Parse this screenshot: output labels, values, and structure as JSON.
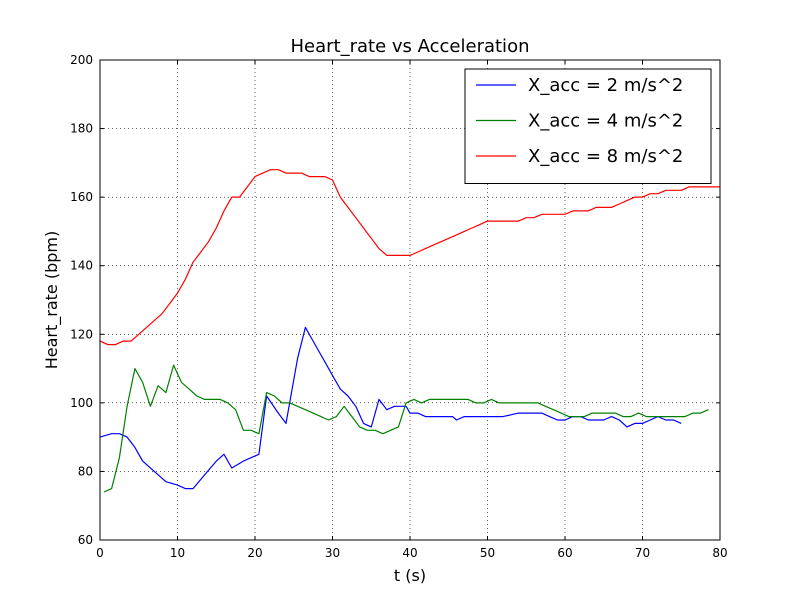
{
  "chart_data": {
    "type": "line",
    "title": "Heart_rate vs Acceleration",
    "xlabel": "t (s)",
    "ylabel": "Heart_rate (bpm)",
    "xlim": [
      0,
      80
    ],
    "ylim": [
      60,
      200
    ],
    "xticks": [
      "0",
      "10",
      "20",
      "30",
      "40",
      "50",
      "60",
      "70",
      "80"
    ],
    "yticks": [
      "60",
      "80",
      "100",
      "120",
      "140",
      "160",
      "180",
      "200"
    ],
    "grid": true,
    "legend_position": "top-right",
    "series": [
      {
        "name": "X_acc = 2 m/s^2",
        "color": "#0000ff",
        "x": [
          0,
          1.5,
          2.5,
          3.5,
          4.5,
          5.5,
          7,
          8.5,
          10,
          11,
          12,
          13.5,
          15,
          16,
          17,
          18.5,
          19.5,
          20.5,
          21.5,
          23,
          24,
          25.5,
          26.5,
          28,
          29,
          30,
          31,
          32,
          33,
          34,
          35,
          36,
          37,
          38,
          39.5,
          40,
          41,
          42,
          44,
          45.5,
          46,
          47,
          48,
          49,
          50,
          51,
          52,
          54,
          55,
          57,
          58,
          59,
          60,
          61,
          62,
          63,
          64,
          65,
          66,
          67,
          68,
          69,
          70,
          71,
          72,
          73,
          74,
          75
        ],
        "y": [
          90,
          91,
          91,
          90,
          87,
          83,
          80,
          77,
          76,
          75,
          75,
          79,
          83,
          85,
          81,
          83,
          84,
          85,
          102,
          97,
          94,
          113,
          122,
          116,
          112,
          108,
          104,
          102,
          99,
          94,
          93,
          101,
          98,
          99,
          99,
          97,
          97,
          96,
          96,
          96,
          95,
          96,
          96,
          96,
          96,
          96,
          96,
          97,
          97,
          97,
          96,
          95,
          95,
          96,
          96,
          95,
          95,
          95,
          96,
          95,
          93,
          94,
          94,
          95,
          96,
          95,
          95,
          94
        ]
      },
      {
        "name": "X_acc = 4 m/s^2",
        "color": "#008000",
        "x": [
          0.5,
          1.5,
          2.5,
          3.5,
          4.5,
          5.5,
          6.5,
          7.5,
          8.5,
          9.5,
          10.5,
          11.5,
          12.5,
          13.5,
          14.5,
          15.5,
          16.5,
          17.5,
          18.5,
          19.5,
          20.5,
          21.5,
          22.5,
          23.5,
          24.5,
          25.5,
          26.5,
          27.5,
          28.5,
          29.5,
          30.5,
          31.5,
          32.5,
          33.5,
          34.5,
          35.5,
          36.5,
          37.5,
          38.5,
          39.5,
          40.5,
          41.5,
          42.5,
          43.5,
          44.5,
          45.5,
          46.5,
          47.5,
          48.5,
          49.5,
          50.5,
          51.5,
          52.5,
          53.5,
          54.5,
          55.5,
          56.5,
          57.5,
          58.5,
          59.5,
          60.5,
          61.5,
          62.5,
          63.5,
          64.5,
          65.5,
          66.5,
          67.5,
          68.5,
          69.5,
          70.5,
          71.5,
          72.5,
          73.5,
          74.5,
          75.5,
          76.5,
          77.5,
          78.5
        ],
        "y": [
          74,
          75,
          84,
          99,
          110,
          106,
          99,
          105,
          103,
          111,
          106,
          104,
          102,
          101,
          101,
          101,
          100,
          98,
          92,
          92,
          91,
          103,
          102,
          100,
          100,
          99,
          98,
          97,
          96,
          95,
          96,
          99,
          96,
          93,
          92,
          92,
          91,
          92,
          93,
          100,
          101,
          100,
          101,
          101,
          101,
          101,
          101,
          101,
          100,
          100,
          101,
          100,
          100,
          100,
          100,
          100,
          100,
          99,
          98,
          97,
          96,
          96,
          96,
          97,
          97,
          97,
          97,
          96,
          96,
          97,
          96,
          96,
          96,
          96,
          96,
          96,
          97,
          97,
          98
        ]
      },
      {
        "name": "X_acc = 8 m/s^2",
        "color": "#ff0000",
        "x": [
          0,
          1,
          2,
          3,
          4,
          5,
          6,
          7,
          8,
          9,
          10,
          11,
          12,
          13,
          14,
          15,
          16,
          17,
          18,
          19,
          20,
          21,
          22,
          23,
          24,
          25,
          26,
          27,
          28,
          29,
          30,
          31,
          32,
          33,
          34,
          35,
          36,
          37,
          38,
          39,
          40,
          41,
          42,
          43,
          44,
          45,
          46,
          47,
          48,
          49,
          50,
          51,
          52,
          53,
          54,
          55,
          56,
          57,
          58,
          59,
          60,
          61,
          62,
          63,
          64,
          65,
          66,
          67,
          68,
          69,
          70,
          71,
          72,
          73,
          74,
          75,
          76,
          77,
          78,
          79,
          80
        ],
        "y": [
          118,
          117,
          117,
          118,
          118,
          120,
          122,
          124,
          126,
          129,
          132,
          136,
          141,
          144,
          147,
          151,
          156,
          160,
          160,
          163,
          166,
          167,
          168,
          168,
          167,
          167,
          167,
          166,
          166,
          166,
          165,
          160,
          157,
          154,
          151,
          148,
          145,
          143,
          143,
          143,
          143,
          144,
          145,
          146,
          147,
          148,
          149,
          150,
          151,
          152,
          153,
          153,
          153,
          153,
          153,
          154,
          154,
          155,
          155,
          155,
          155,
          156,
          156,
          156,
          157,
          157,
          157,
          158,
          159,
          160,
          160,
          161,
          161,
          162,
          162,
          162,
          163,
          163,
          163,
          163,
          163
        ]
      }
    ]
  }
}
